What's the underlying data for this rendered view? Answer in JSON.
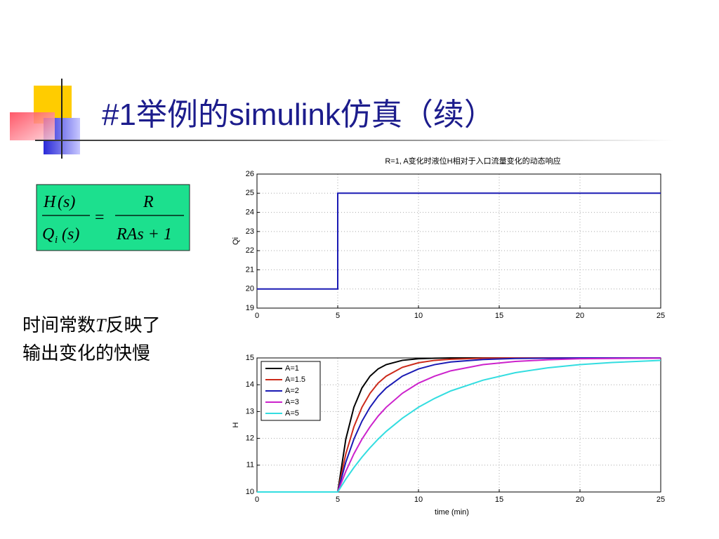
{
  "title": "#1举例的simulink仿真（续）",
  "formula": {
    "lhs_num": "H",
    "lhs_num_arg": "(s)",
    "lhs_den": "Q",
    "lhs_den_sub": "i",
    "lhs_den_arg": "(s)",
    "equals": "=",
    "rhs_num": "R",
    "rhs_den": "RAs + 1"
  },
  "note": {
    "line1_a": "时间常数",
    "line1_t": "T",
    "line1_b": "反映了",
    "line2": "输出变化的快慢"
  },
  "chart_data": [
    {
      "type": "line",
      "title": "R=1, A变化时液位H相对于入口流量变化的动态响应",
      "y_label": "Qi",
      "x": [
        0,
        5,
        5,
        25
      ],
      "values": [
        20,
        20,
        25,
        25
      ],
      "color": "#1a1ab4",
      "xlim": [
        0,
        25
      ],
      "xticks": [
        0,
        5,
        10,
        15,
        20,
        25
      ],
      "ylim": [
        19,
        26
      ],
      "yticks": [
        19,
        20,
        21,
        22,
        23,
        24,
        25,
        26
      ],
      "grid": true
    },
    {
      "type": "line",
      "x_label": "time (min)",
      "y_label": "H",
      "legend": "upper left",
      "x": [
        0,
        5,
        5.5,
        6,
        6.5,
        7,
        7.5,
        8,
        9,
        10,
        11,
        12,
        14,
        16,
        18,
        20,
        22,
        25
      ],
      "series": [
        {
          "name": "A=1",
          "color": "#000000",
          "values": [
            10,
            10,
            11.97,
            13.16,
            13.88,
            14.32,
            14.59,
            14.75,
            14.91,
            14.97,
            14.99,
            15,
            15,
            15,
            15,
            15,
            15,
            15
          ]
        },
        {
          "name": "A=1.5",
          "color": "#cc2a1a",
          "values": [
            10,
            10,
            11.42,
            12.43,
            13.16,
            13.68,
            14.06,
            14.32,
            14.65,
            14.82,
            14.91,
            14.95,
            14.99,
            15,
            15,
            15,
            15,
            15
          ]
        },
        {
          "name": "A=2",
          "color": "#1a1ab4",
          "values": [
            10,
            10,
            11.11,
            11.97,
            12.64,
            13.16,
            13.57,
            13.88,
            14.32,
            14.59,
            14.75,
            14.85,
            14.94,
            14.98,
            14.99,
            15,
            15,
            15
          ]
        },
        {
          "name": "A=3",
          "color": "#cc22cc",
          "values": [
            10,
            10,
            10.77,
            11.42,
            11.97,
            12.43,
            12.83,
            13.16,
            13.68,
            14.06,
            14.32,
            14.52,
            14.75,
            14.87,
            14.93,
            14.97,
            14.98,
            14.99
          ]
        },
        {
          "name": "A=5",
          "color": "#33dde0",
          "values": [
            10,
            10,
            10.48,
            10.91,
            11.3,
            11.65,
            11.97,
            12.26,
            12.75,
            13.16,
            13.49,
            13.77,
            14.17,
            14.45,
            14.63,
            14.75,
            14.83,
            14.91
          ]
        }
      ],
      "xlim": [
        0,
        25
      ],
      "xticks": [
        0,
        5,
        10,
        15,
        20,
        25
      ],
      "ylim": [
        10,
        15
      ],
      "yticks": [
        10,
        11,
        12,
        13,
        14,
        15
      ],
      "grid": true
    }
  ]
}
